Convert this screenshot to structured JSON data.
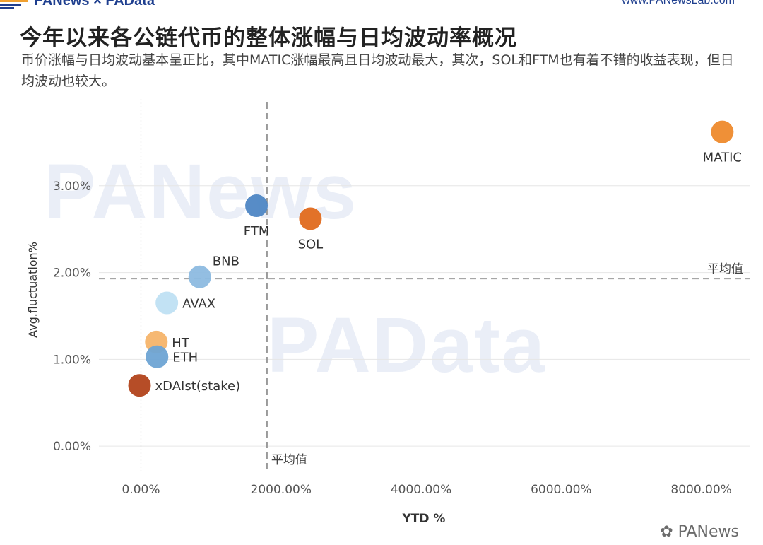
{
  "header": {
    "brand_left": "PANews × PAData",
    "brand_right": "www.PANewsLab.com"
  },
  "title": "今年以来各公链代币的整体涨幅与日均波动率概况",
  "subtitle": "币价涨幅与日均波动基本呈正比，其中MATIC涨幅最高且日均波动最大，其次，SOL和FTM也有着不错的收益表现，但日均波动也较大。",
  "watermarks": {
    "top": "PANews",
    "middle": "PAData"
  },
  "footer_watermark": "PANews",
  "chart_data": {
    "type": "scatter",
    "xlabel": "YTD %",
    "ylabel": "Avg.fluctuation%",
    "xlim": [
      -600,
      8700
    ],
    "ylim": [
      -0.3,
      4.0
    ],
    "x_ticks": [
      0,
      2000,
      4000,
      6000,
      8000
    ],
    "x_tick_labels": [
      "0.00%",
      "2000.00%",
      "4000.00%",
      "6000.00%",
      "8000.00%"
    ],
    "y_ticks": [
      0,
      1,
      2,
      3
    ],
    "y_tick_labels": [
      "0.00%",
      "1.00%",
      "2.00%",
      "3.00%"
    ],
    "grid": true,
    "ref_lines": {
      "x_mean": 1800,
      "y_mean": 1.93,
      "label": "平均值"
    },
    "points": [
      {
        "name": "MATIC",
        "x": 8300,
        "y": 3.62,
        "color": "#ee8a2c",
        "label_pos": "below"
      },
      {
        "name": "FTM",
        "x": 1650,
        "y": 2.77,
        "color": "#4e86c4",
        "label_pos": "below"
      },
      {
        "name": "SOL",
        "x": 2420,
        "y": 2.62,
        "color": "#e06a1e",
        "label_pos": "below"
      },
      {
        "name": "BNB",
        "x": 840,
        "y": 1.95,
        "color": "#8dbbe0",
        "label_pos": "upper-right"
      },
      {
        "name": "AVAX",
        "x": 370,
        "y": 1.65,
        "color": "#bfe0f3",
        "label_pos": "right"
      },
      {
        "name": "HT",
        "x": 220,
        "y": 1.2,
        "color": "#f5b46a",
        "label_pos": "right"
      },
      {
        "name": "ETH",
        "x": 230,
        "y": 1.03,
        "color": "#6ea4d4",
        "label_pos": "right"
      },
      {
        "name": "xDAIst(stake)",
        "x": -20,
        "y": 0.7,
        "color": "#b2431b",
        "label_pos": "right"
      }
    ]
  }
}
